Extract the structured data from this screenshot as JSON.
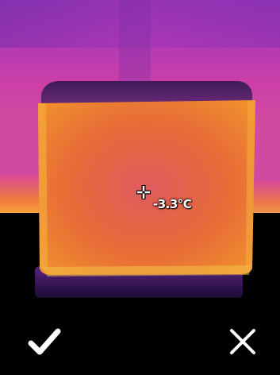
{
  "viewer": {
    "spot_temperature": "-3.3°C"
  },
  "actions": {
    "confirm_icon": "check-icon",
    "cancel_icon": "close-icon"
  },
  "palette": {
    "background_hot": "#d23fa6",
    "object_core": "#e96f2f",
    "object_edge": "#f2a33c",
    "cold_floor": "#000000",
    "shadow": "#3a1458"
  }
}
